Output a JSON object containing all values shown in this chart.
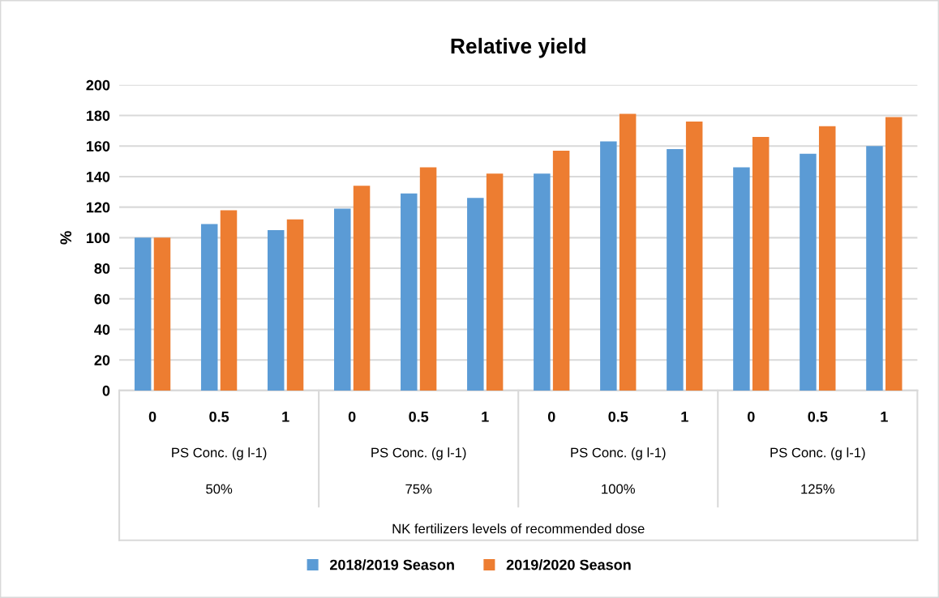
{
  "chart_data": {
    "type": "bar",
    "title": "Relative yield",
    "ylabel": "%",
    "categories": [
      "0",
      "0.5",
      "1",
      "0",
      "0.5",
      "1",
      "0",
      "0.5",
      "1",
      "0",
      "0.5",
      "1"
    ],
    "annotations": [
      "PS Conc. (g l-1)",
      "PS Conc. (g l-1)",
      "PS Conc. (g l-1)",
      "PS Conc. (g l-1)",
      "50%",
      "75%",
      "100%",
      "125%",
      "NK fertilizers levels of recommended dose"
    ],
    "series": [
      {
        "name": "2018/2019 Season",
        "color": "#5b9bd5",
        "values": [
          100,
          109,
          105,
          119,
          129,
          126,
          142,
          163,
          158,
          146,
          155,
          160
        ]
      },
      {
        "name": "2019/2020 Season",
        "color": "#ed7d31",
        "values": [
          100,
          118,
          112,
          134,
          146,
          142,
          157,
          181,
          176,
          166,
          173,
          179
        ]
      }
    ],
    "ylim": [
      0,
      200
    ],
    "yticks": [
      0,
      20,
      40,
      60,
      80,
      100,
      120,
      140,
      160,
      180,
      200
    ],
    "grid": "y",
    "legend": "bottom"
  }
}
